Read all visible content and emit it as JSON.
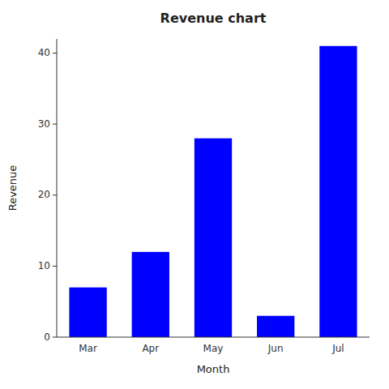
{
  "chart_data": {
    "type": "bar",
    "title": "Revenue chart",
    "xlabel": "Month",
    "ylabel": "Revenue",
    "categories": [
      "Mar",
      "Apr",
      "May",
      "Jun",
      "Jul"
    ],
    "values": [
      7,
      12,
      28,
      3,
      41
    ],
    "color": "#0000FF",
    "ylim": [
      0,
      42
    ],
    "yticks": [
      0,
      10,
      20,
      30,
      40
    ],
    "grid": false
  }
}
